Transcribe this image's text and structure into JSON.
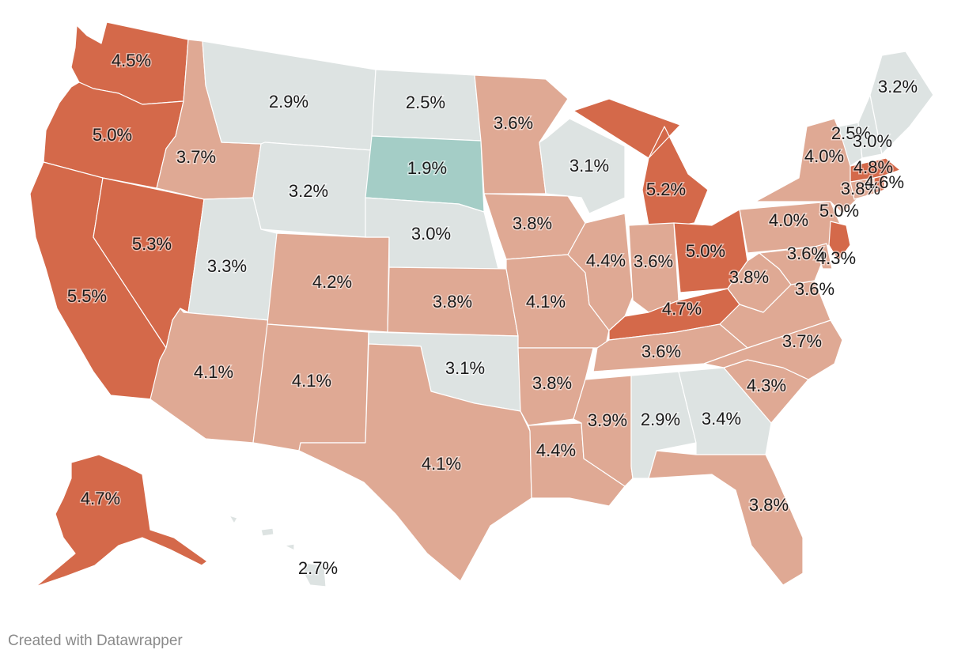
{
  "legend_colors": {
    "low": "#a4cdc6",
    "neutral": "#dde3e2",
    "mid": "#dfa994",
    "high": "#d4694a"
  },
  "states": [
    {
      "id": "WA",
      "label": "4.5%",
      "color": "#d4694a"
    },
    {
      "id": "OR",
      "label": "5.0%",
      "color": "#d4694a"
    },
    {
      "id": "CA",
      "label": "5.5%",
      "color": "#d4694a"
    },
    {
      "id": "NV",
      "label": "5.3%",
      "color": "#d4694a"
    },
    {
      "id": "ID",
      "label": "3.7%",
      "color": "#dfa994"
    },
    {
      "id": "MT",
      "label": "2.9%",
      "color": "#dde3e2"
    },
    {
      "id": "WY",
      "label": "3.2%",
      "color": "#dde3e2"
    },
    {
      "id": "UT",
      "label": "3.3%",
      "color": "#dde3e2"
    },
    {
      "id": "AZ",
      "label": "4.1%",
      "color": "#dfa994"
    },
    {
      "id": "CO",
      "label": "4.2%",
      "color": "#dfa994"
    },
    {
      "id": "NM",
      "label": "4.1%",
      "color": "#dfa994"
    },
    {
      "id": "ND",
      "label": "2.5%",
      "color": "#dde3e2"
    },
    {
      "id": "SD",
      "label": "1.9%",
      "color": "#a4cdc6"
    },
    {
      "id": "NE",
      "label": "3.0%",
      "color": "#dde3e2"
    },
    {
      "id": "KS",
      "label": "3.8%",
      "color": "#dfa994"
    },
    {
      "id": "OK",
      "label": "3.1%",
      "color": "#dde3e2"
    },
    {
      "id": "TX",
      "label": "4.1%",
      "color": "#dfa994"
    },
    {
      "id": "MN",
      "label": "3.6%",
      "color": "#dfa994"
    },
    {
      "id": "IA",
      "label": "3.8%",
      "color": "#dfa994"
    },
    {
      "id": "MO",
      "label": "4.1%",
      "color": "#dfa994"
    },
    {
      "id": "AR",
      "label": "3.8%",
      "color": "#dfa994"
    },
    {
      "id": "LA",
      "label": "4.4%",
      "color": "#dfa994"
    },
    {
      "id": "WI",
      "label": "3.1%",
      "color": "#dde3e2"
    },
    {
      "id": "IL",
      "label": "4.4%",
      "color": "#dfa994"
    },
    {
      "id": "MI",
      "label": "5.2%",
      "color": "#d4694a"
    },
    {
      "id": "IN",
      "label": "3.6%",
      "color": "#dfa994"
    },
    {
      "id": "OH",
      "label": "5.0%",
      "color": "#d4694a"
    },
    {
      "id": "KY",
      "label": "4.7%",
      "color": "#d4694a"
    },
    {
      "id": "TN",
      "label": "3.6%",
      "color": "#dfa994"
    },
    {
      "id": "MS",
      "label": "3.9%",
      "color": "#dfa994"
    },
    {
      "id": "AL",
      "label": "2.9%",
      "color": "#dde3e2"
    },
    {
      "id": "GA",
      "label": "3.4%",
      "color": "#dde3e2"
    },
    {
      "id": "FL",
      "label": "3.8%",
      "color": "#dfa994"
    },
    {
      "id": "SC",
      "label": "4.3%",
      "color": "#dfa994"
    },
    {
      "id": "NC",
      "label": "3.7%",
      "color": "#dfa994"
    },
    {
      "id": "VA",
      "label": "3.6%",
      "color": "#dfa994"
    },
    {
      "id": "WV",
      "label": "3.8%",
      "color": "#dfa994"
    },
    {
      "id": "PA",
      "label": "4.0%",
      "color": "#dfa994"
    },
    {
      "id": "NY",
      "label": "4.0%",
      "color": "#dfa994"
    },
    {
      "id": "MD",
      "label": "3.6%",
      "color": "#dfa994"
    },
    {
      "id": "DE",
      "label": "4.3%",
      "color": "#dfa994"
    },
    {
      "id": "NJ",
      "label": "5.0%",
      "color": "#d4694a"
    },
    {
      "id": "CT",
      "label": "3.8%",
      "color": "#dfa994"
    },
    {
      "id": "RI",
      "label": "4.6%",
      "color": "#d4694a"
    },
    {
      "id": "MA",
      "label": "4.8%",
      "color": "#d4694a"
    },
    {
      "id": "VT",
      "label": "2.5%",
      "color": "#dde3e2"
    },
    {
      "id": "NH",
      "label": "3.0%",
      "color": "#dde3e2"
    },
    {
      "id": "ME",
      "label": "3.2%",
      "color": "#dde3e2"
    },
    {
      "id": "AK",
      "label": "4.7%",
      "color": "#d4694a"
    },
    {
      "id": "HI",
      "label": "2.7%",
      "color": "#dde3e2"
    }
  ],
  "footer": {
    "credit": "Created with Datawrapper"
  }
}
